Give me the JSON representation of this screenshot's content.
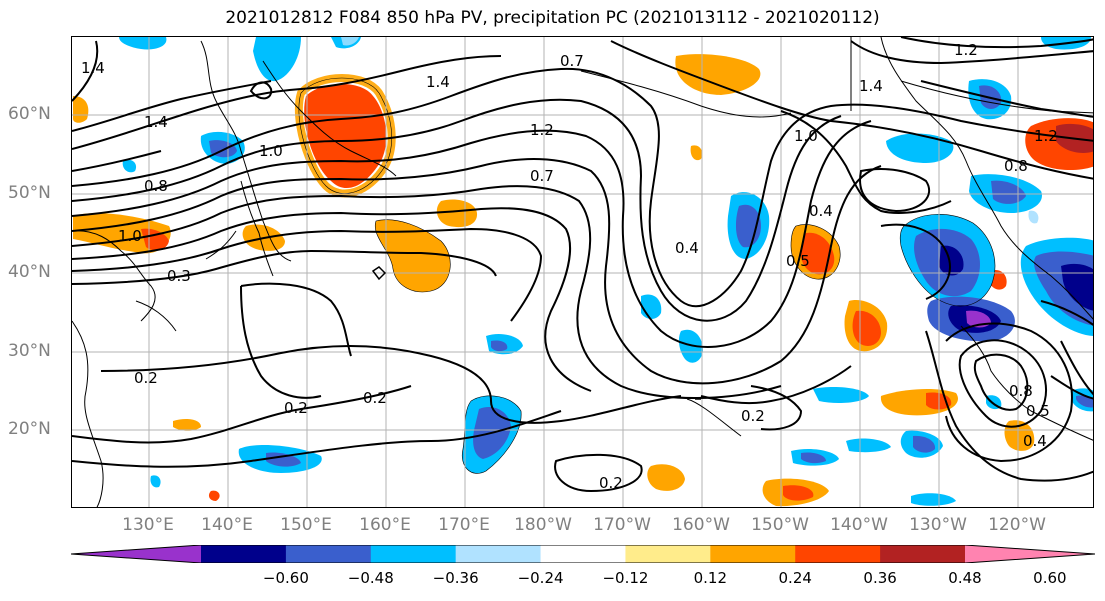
{
  "title": "2021012812 F084 850 hPa PV, precipitation PC (2021013112 - 2021020112)",
  "lat_labels": [
    "60°N",
    "50°N",
    "40°N",
    "30°N",
    "20°N"
  ],
  "lon_labels": [
    "130°E",
    "140°E",
    "150°E",
    "160°E",
    "170°E",
    "180°W",
    "170°W",
    "160°W",
    "150°W",
    "140°W",
    "130°W",
    "120°W"
  ],
  "colorbar": {
    "colors": [
      "#9932cc",
      "#00008b",
      "#3a5fcd",
      "#00bfff",
      "#b0e2ff",
      "#ffffff",
      "#ffec8b",
      "#ffa500",
      "#ff4500",
      "#b22222",
      "#ff83b0"
    ],
    "ticks": [
      "−0.60",
      "−0.48",
      "−0.36",
      "−0.24",
      "−0.12",
      "0.12",
      "0.24",
      "0.36",
      "0.48",
      "0.60"
    ]
  },
  "contour_labels": [
    "1.4",
    "1.4",
    "1.4",
    "1.4",
    "1.2",
    "1.2",
    "1.2",
    "1.0",
    "1.0",
    "1.0",
    "0.8",
    "0.8",
    "0.7",
    "0.7",
    "0.5",
    "0.4",
    "0.4",
    "0.3",
    "0.2",
    "0.2",
    "0.2",
    "0.2",
    "0.2",
    "0.8",
    "0.4",
    "0.5"
  ],
  "contour_label_texts": {
    "a": "1.4",
    "b": "1.4",
    "c": "1.4",
    "d": "1.4",
    "e": "1.2",
    "f": "1.2",
    "g": "1.2",
    "h": "1.0",
    "i": "1.0",
    "j": "1.0",
    "k": "0.8",
    "l": "0.8",
    "m": "0.7",
    "n": "0.7",
    "o": "0.5",
    "p": "0.4",
    "q": "0.4",
    "r": "0.3",
    "s": "0.2",
    "t": "0.2",
    "u": "0.2",
    "v": "0.2",
    "w": "0.2",
    "x": "0.8",
    "y": "0.4",
    "z": "0.5"
  }
}
